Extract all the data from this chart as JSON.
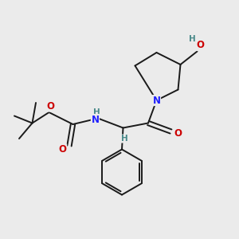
{
  "bg_color": "#ebebeb",
  "bond_color": "#1a1a1a",
  "N_color": "#2020ff",
  "O_color": "#cc0000",
  "H_color": "#4a8a8a",
  "figsize": [
    3.0,
    3.0
  ],
  "dpi": 100,
  "xlim": [
    0,
    10
  ],
  "ylim": [
    0,
    10
  ]
}
